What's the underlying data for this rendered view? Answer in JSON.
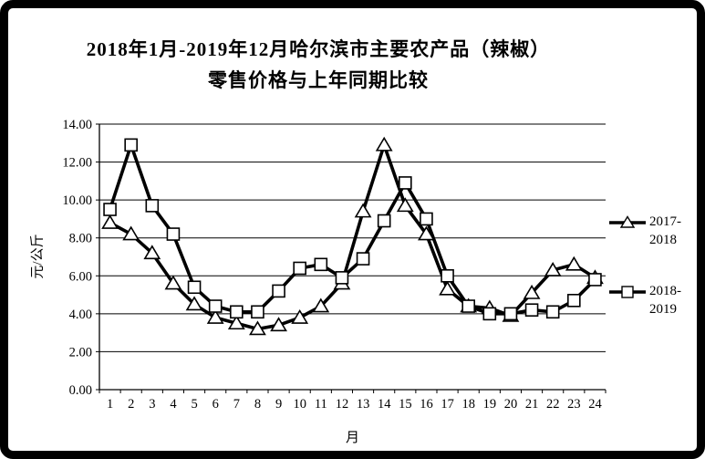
{
  "title": {
    "line1": "2018年1月-2019年12月哈尔滨市主要农产品（辣椒）",
    "line2": "零售价格与上年同期比较"
  },
  "chart_data": {
    "type": "line",
    "title": "2018年1月-2019年12月哈尔滨市主要农产品（辣椒）零售价格与上年同期比较",
    "xlabel": "月",
    "ylabel": "元/公斤",
    "categories": [
      1,
      2,
      3,
      4,
      5,
      6,
      7,
      8,
      9,
      10,
      11,
      12,
      13,
      14,
      15,
      16,
      17,
      18,
      19,
      20,
      21,
      22,
      23,
      24
    ],
    "series": [
      {
        "name": "2017-2018",
        "marker": "triangle",
        "values": [
          8.8,
          8.2,
          7.2,
          5.6,
          4.5,
          3.8,
          3.5,
          3.2,
          3.4,
          3.8,
          4.4,
          5.6,
          9.4,
          12.9,
          9.7,
          8.2,
          5.3,
          4.4,
          4.3,
          3.9,
          5.1,
          6.3,
          6.6,
          5.9
        ]
      },
      {
        "name": "2018-2019",
        "marker": "square",
        "values": [
          9.5,
          12.9,
          9.7,
          8.2,
          5.4,
          4.4,
          4.1,
          4.1,
          5.2,
          6.4,
          6.6,
          5.9,
          6.9,
          8.9,
          10.9,
          9.0,
          6.0,
          4.4,
          4.0,
          4.0,
          4.2,
          4.1,
          4.7,
          5.8
        ]
      }
    ],
    "ylim": [
      0,
      14
    ],
    "ytick_step": 2,
    "ytick_labels": [
      "0.00",
      "2.00",
      "4.00",
      "6.00",
      "8.00",
      "10.00",
      "12.00",
      "14.00"
    ],
    "grid": true,
    "legend_position": "right",
    "line_color": "#000000",
    "marker_fill": "#ffffff",
    "background": "#ffffff"
  },
  "legend": {
    "items": [
      {
        "label": "2017-2018",
        "lines": [
          "2017-",
          "2018"
        ],
        "marker": "triangle"
      },
      {
        "label": "2018-2019",
        "lines": [
          "2018-",
          "2019"
        ],
        "marker": "square"
      }
    ]
  }
}
